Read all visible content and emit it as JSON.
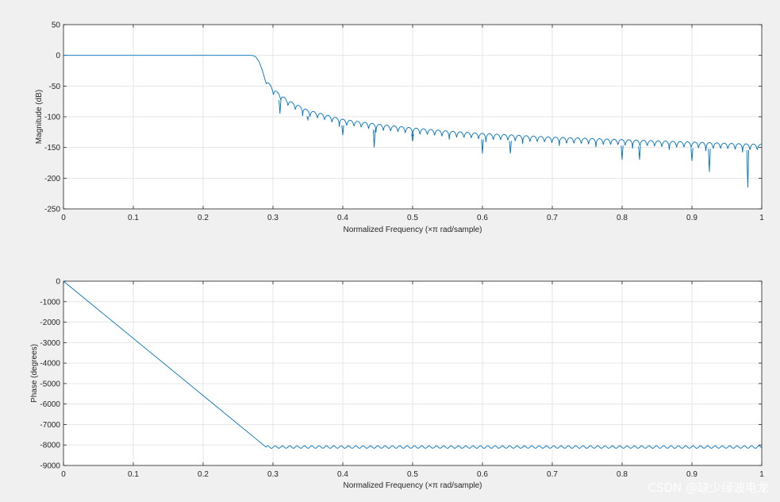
{
  "watermark": "CSDN @缺少绿波电龙",
  "chart_data": [
    {
      "type": "line",
      "xlabel": "Normalized Frequency  (×π rad/sample)",
      "ylabel": "Magnitude (dB)",
      "xlim": [
        0,
        1
      ],
      "ylim": [
        -250,
        50
      ],
      "xticks": [
        0,
        0.1,
        0.2,
        0.3,
        0.4,
        0.5,
        0.6,
        0.7,
        0.8,
        0.9,
        1
      ],
      "yticks": [
        50,
        0,
        -50,
        -100,
        -150,
        -200,
        -250
      ],
      "grid": true,
      "color": "#0072BD",
      "series": [
        {
          "x": [
            0,
            0.27,
            0.275,
            0.28,
            0.285,
            0.29,
            0.3,
            0.32,
            0.35,
            0.4,
            0.45,
            0.5,
            0.55,
            0.6,
            0.65,
            0.7,
            0.75,
            0.8,
            0.85,
            0.9,
            0.95,
            1.0
          ],
          "values": [
            0,
            0,
            -2,
            -10,
            -25,
            -45,
            -60,
            -78,
            -95,
            -110,
            -118,
            -124,
            -129,
            -133,
            -136,
            -139,
            -141,
            -143,
            -145,
            -147,
            -149,
            -151
          ],
          "notches": [
            [
              0.31,
              -95
            ],
            [
              0.35,
              -105
            ],
            [
              0.4,
              -130
            ],
            [
              0.445,
              -150
            ],
            [
              0.5,
              -140
            ],
            [
              0.6,
              -160
            ],
            [
              0.64,
              -160
            ],
            [
              0.8,
              -170
            ],
            [
              0.825,
              -170
            ],
            [
              0.9,
              -172
            ],
            [
              0.925,
              -190
            ],
            [
              0.98,
              -215
            ]
          ]
        }
      ]
    },
    {
      "type": "line",
      "xlabel": "Normalized Frequency  (×π rad/sample)",
      "ylabel": "Phase (degrees)",
      "xlim": [
        0,
        1
      ],
      "ylim": [
        -9000,
        0
      ],
      "xticks": [
        0,
        0.1,
        0.2,
        0.3,
        0.4,
        0.5,
        0.6,
        0.7,
        0.8,
        0.9,
        1
      ],
      "yticks": [
        0,
        -1000,
        -2000,
        -3000,
        -4000,
        -5000,
        -6000,
        -7000,
        -8000,
        -9000
      ],
      "grid": true,
      "color": "#0072BD",
      "series": [
        {
          "x": [
            0,
            0.29,
            1.0
          ],
          "values": [
            0,
            -8100,
            -8100
          ],
          "ripple_amplitude": 60
        }
      ]
    }
  ]
}
